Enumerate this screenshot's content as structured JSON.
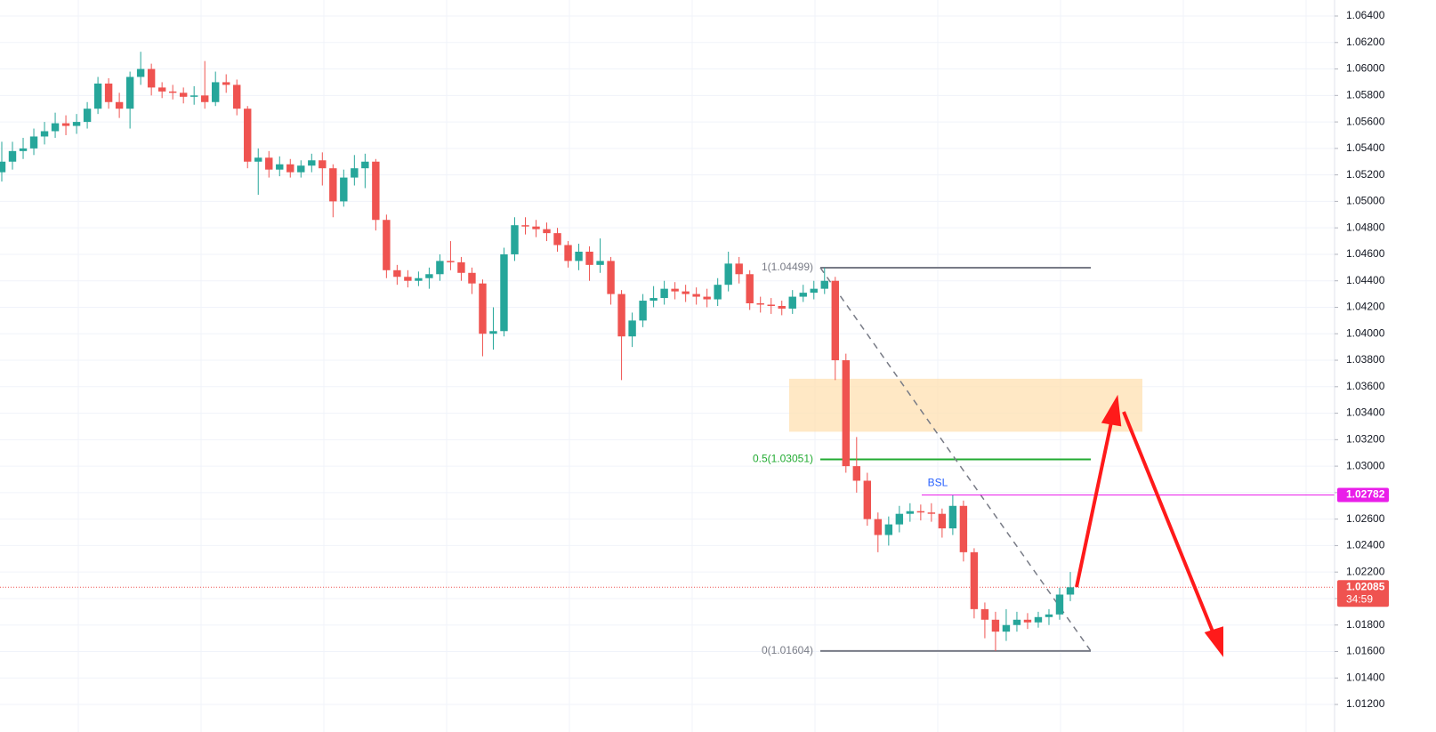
{
  "chart_data": {
    "type": "candlestick",
    "up_color": "#26a69a",
    "down_color": "#ef5350",
    "open": [
      1.0522,
      1.053,
      1.0538,
      1.054,
      1.0549,
      1.0553,
      1.0559,
      1.0557,
      1.056,
      1.057,
      1.0589,
      1.0575,
      1.057,
      1.0594,
      1.06,
      1.0586,
      1.0583,
      1.0582,
      1.0579,
      1.058,
      1.0575,
      1.059,
      1.0588,
      1.057,
      1.053,
      1.0533,
      1.0524,
      1.0528,
      1.0522,
      1.0527,
      1.0531,
      1.0525,
      1.05,
      1.0518,
      1.0525,
      1.053,
      1.0486,
      1.0448,
      1.0443,
      1.044,
      1.0442,
      1.0445,
      1.0455,
      1.0454,
      1.0446,
      1.0438,
      1.04,
      1.0402,
      1.046,
      1.0482,
      1.0481,
      1.0479,
      1.0476,
      1.0467,
      1.0455,
      1.0462,
      1.0452,
      1.0455,
      1.043,
      1.0398,
      1.041,
      1.0425,
      1.0427,
      1.0434,
      1.0432,
      1.043,
      1.0428,
      1.0426,
      1.0437,
      1.0453,
      1.0445,
      1.0423,
      1.0422,
      1.0421,
      1.0419,
      1.0428,
      1.0431,
      1.0434,
      1.044,
      1.038,
      1.03,
      1.0289,
      1.026,
      1.0248,
      1.0256,
      1.0264,
      1.0266,
      1.0265,
      1.0264,
      1.0253,
      1.027,
      1.0235,
      1.0192,
      1.0184,
      1.0175,
      1.018,
      1.0184,
      1.0182,
      1.0186,
      1.0188,
      1.0203
    ],
    "high": [
      1.0545,
      1.0545,
      1.0548,
      1.0555,
      1.056,
      1.0567,
      1.0565,
      1.0566,
      1.0575,
      1.0594,
      1.0593,
      1.0582,
      1.0598,
      1.0613,
      1.0604,
      1.059,
      1.0588,
      1.0586,
      1.0587,
      1.0606,
      1.0598,
      1.0596,
      1.0592,
      1.0572,
      1.054,
      1.0538,
      1.0534,
      1.0532,
      1.0531,
      1.0536,
      1.0537,
      1.0528,
      1.0524,
      1.0535,
      1.0536,
      1.0532,
      1.049,
      1.0452,
      1.0448,
      1.0447,
      1.045,
      1.046,
      1.047,
      1.0458,
      1.045,
      1.0441,
      1.042,
      1.0465,
      1.0488,
      1.0488,
      1.0486,
      1.0484,
      1.048,
      1.047,
      1.0468,
      1.0466,
      1.0472,
      1.0458,
      1.0433,
      1.0416,
      1.043,
      1.0436,
      1.044,
      1.0439,
      1.0437,
      1.0435,
      1.0434,
      1.0442,
      1.0462,
      1.0458,
      1.0448,
      1.0428,
      1.0427,
      1.0425,
      1.0433,
      1.0437,
      1.044,
      1.04499,
      1.0443,
      1.0385,
      1.0322,
      1.0295,
      1.0265,
      1.0262,
      1.027,
      1.0272,
      1.0271,
      1.0272,
      1.0268,
      1.0278,
      1.0274,
      1.0238,
      1.0197,
      1.019,
      1.0192,
      1.019,
      1.0189,
      1.019,
      1.0192,
      1.0208,
      1.022
    ],
    "low": [
      1.0515,
      1.0524,
      1.0532,
      1.0535,
      1.0543,
      1.0548,
      1.055,
      1.0551,
      1.0555,
      1.0566,
      1.057,
      1.0563,
      1.0555,
      1.0588,
      1.058,
      1.0578,
      1.0577,
      1.0574,
      1.0573,
      1.057,
      1.0572,
      1.0582,
      1.0565,
      1.0525,
      1.0505,
      1.0518,
      1.0519,
      1.0518,
      1.0518,
      1.0522,
      1.0512,
      1.0488,
      1.0496,
      1.0512,
      1.051,
      1.0478,
      1.0442,
      1.0437,
      1.0435,
      1.0436,
      1.0434,
      1.044,
      1.0448,
      1.044,
      1.043,
      1.0383,
      1.0388,
      1.0398,
      1.0455,
      1.0475,
      1.0473,
      1.047,
      1.0462,
      1.045,
      1.0448,
      1.044,
      1.0446,
      1.0422,
      1.0365,
      1.039,
      1.0405,
      1.042,
      1.0422,
      1.0426,
      1.0424,
      1.0422,
      1.042,
      1.0421,
      1.0432,
      1.0438,
      1.0418,
      1.0416,
      1.0415,
      1.0414,
      1.0415,
      1.0424,
      1.0426,
      1.043,
      1.0365,
      1.0295,
      1.028,
      1.0255,
      1.0235,
      1.024,
      1.025,
      1.0258,
      1.0259,
      1.0258,
      1.0246,
      1.0248,
      1.0228,
      1.0185,
      1.017,
      1.01604,
      1.0168,
      1.0175,
      1.0177,
      1.0178,
      1.018,
      1.0184,
      1.0198
    ],
    "close": [
      1.053,
      1.0538,
      1.054,
      1.0549,
      1.0553,
      1.0559,
      1.0557,
      1.056,
      1.057,
      1.0589,
      1.0575,
      1.057,
      1.0594,
      1.06,
      1.0586,
      1.0583,
      1.0582,
      1.0579,
      1.058,
      1.0575,
      1.059,
      1.0588,
      1.057,
      1.053,
      1.0533,
      1.0524,
      1.0528,
      1.0522,
      1.0527,
      1.0531,
      1.0525,
      1.05,
      1.0518,
      1.0525,
      1.053,
      1.0486,
      1.0448,
      1.0443,
      1.044,
      1.0442,
      1.0445,
      1.0455,
      1.0454,
      1.0446,
      1.0438,
      1.04,
      1.0402,
      1.046,
      1.0482,
      1.0481,
      1.0479,
      1.0476,
      1.0467,
      1.0455,
      1.0462,
      1.0452,
      1.0455,
      1.043,
      1.0398,
      1.041,
      1.0425,
      1.0427,
      1.0434,
      1.0432,
      1.043,
      1.0428,
      1.0426,
      1.0437,
      1.0453,
      1.0445,
      1.0423,
      1.0422,
      1.0421,
      1.0419,
      1.0428,
      1.0431,
      1.0434,
      1.044,
      1.038,
      1.03,
      1.0289,
      1.026,
      1.0248,
      1.0256,
      1.0264,
      1.0266,
      1.0265,
      1.0264,
      1.0253,
      1.027,
      1.0235,
      1.0192,
      1.0184,
      1.0175,
      1.018,
      1.0184,
      1.0182,
      1.0186,
      1.0188,
      1.0203,
      1.02085
    ],
    "ylim": [
      1.00992,
      1.06521
    ],
    "yticks": [
      {
        "value": 1.012,
        "label": "1.01200"
      },
      {
        "value": 1.014,
        "label": "1.01400"
      },
      {
        "value": 1.016,
        "label": "1.01600"
      },
      {
        "value": 1.018,
        "label": "1.01800"
      },
      {
        "value": 1.02,
        "label": "1.02000"
      },
      {
        "value": 1.022,
        "label": "1.02200"
      },
      {
        "value": 1.024,
        "label": "1.02400"
      },
      {
        "value": 1.026,
        "label": "1.02600"
      },
      {
        "value": 1.028,
        "label": "1.02800"
      },
      {
        "value": 1.03,
        "label": "1.03000"
      },
      {
        "value": 1.032,
        "label": "1.03200"
      },
      {
        "value": 1.034,
        "label": "1.03400"
      },
      {
        "value": 1.036,
        "label": "1.03600"
      },
      {
        "value": 1.038,
        "label": "1.03800"
      },
      {
        "value": 1.04,
        "label": "1.04000"
      },
      {
        "value": 1.042,
        "label": "1.04200"
      },
      {
        "value": 1.044,
        "label": "1.04400"
      },
      {
        "value": 1.046,
        "label": "1.04600"
      },
      {
        "value": 1.048,
        "label": "1.04800"
      },
      {
        "value": 1.05,
        "label": "1.05000"
      },
      {
        "value": 1.052,
        "label": "1.05200"
      },
      {
        "value": 1.054,
        "label": "1.05400"
      },
      {
        "value": 1.056,
        "label": "1.05600"
      },
      {
        "value": 1.058,
        "label": "1.05800"
      },
      {
        "value": 1.06,
        "label": "1.06000"
      },
      {
        "value": 1.062,
        "label": "1.06200"
      },
      {
        "value": 1.064,
        "label": "1.06400"
      }
    ],
    "grid": true,
    "fib_levels": [
      {
        "label": "1(1.04499)",
        "value": 1.04499,
        "color": "#787b86"
      },
      {
        "label": "0.5(1.03051)",
        "value": 1.03051,
        "color": "#22ab32"
      },
      {
        "label": "0(1.01604)",
        "value": 1.01604,
        "color": "#787b86"
      }
    ],
    "zone": {
      "values": [
        1.0326,
        1.0366
      ],
      "color": "#ffe0b2"
    },
    "bsl": {
      "label": "BSL",
      "value": 1.02782,
      "price_label": "1.02782",
      "color": "#e91ee9",
      "text_color": "#2962ff"
    },
    "last_price": {
      "value": 1.02085,
      "label": "1.02085",
      "countdown": "34:59",
      "color": "#ef5350"
    }
  }
}
